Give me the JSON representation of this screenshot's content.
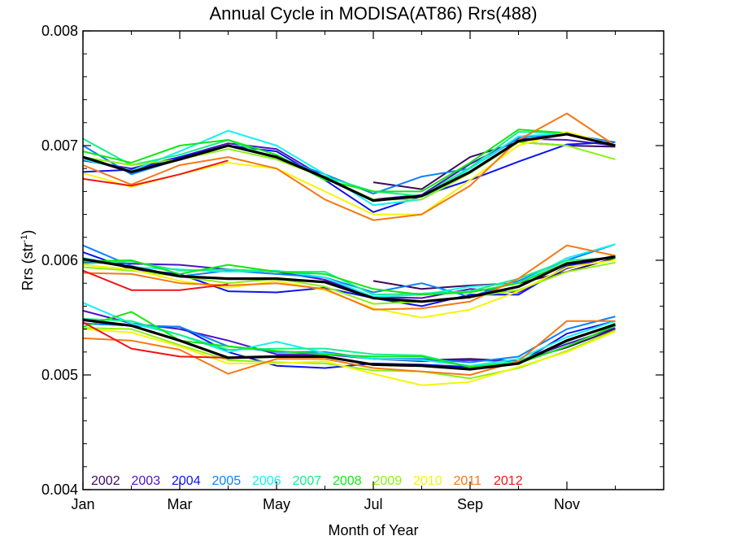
{
  "chart_data": {
    "type": "line",
    "title": "Annual Cycle in MODISA(AT86) Rrs(488)",
    "xlabel": "Month of Year",
    "ylabel_main": "Rrs (str",
    "ylabel_sup": "-1",
    "ylabel_close": ")",
    "xlim": [
      1,
      13
    ],
    "ylim": [
      0.004,
      0.008
    ],
    "xticks": [
      {
        "x": 1,
        "label": "Jan"
      },
      {
        "x": 3,
        "label": "Mar"
      },
      {
        "x": 5,
        "label": "May"
      },
      {
        "x": 7,
        "label": "Jul"
      },
      {
        "x": 9,
        "label": "Sep"
      },
      {
        "x": 11,
        "label": "Nov"
      }
    ],
    "yticks": [
      {
        "y": 0.004,
        "label": "0.004"
      },
      {
        "y": 0.005,
        "label": "0.005"
      },
      {
        "y": 0.006,
        "label": "0.006"
      },
      {
        "y": 0.007,
        "label": "0.007"
      },
      {
        "y": 0.008,
        "label": "0.008"
      }
    ],
    "legend_placement": "bottom-left",
    "groups": [
      "upper",
      "middle",
      "lower"
    ],
    "x": [
      1,
      2,
      3,
      4,
      5,
      6,
      7,
      8,
      9,
      10,
      11,
      12
    ],
    "series": [
      {
        "name": "2002",
        "color": "#3c0a5a",
        "upper": [
          null,
          null,
          null,
          null,
          null,
          null,
          0.00668,
          0.00662,
          0.0069,
          0.00703,
          0.007,
          0.00699
        ],
        "middle": [
          null,
          null,
          null,
          null,
          null,
          null,
          0.00582,
          0.00575,
          0.00578,
          0.0058,
          0.0059,
          0.00602
        ],
        "lower": [
          null,
          null,
          null,
          null,
          null,
          null,
          0.00514,
          0.00513,
          0.00514,
          0.00512,
          0.00524,
          0.0054
        ]
      },
      {
        "name": "2003",
        "color": "#4b14c8",
        "upper": [
          0.00687,
          0.0068,
          0.0069,
          0.00702,
          0.00697,
          0.00672,
          0.00653,
          0.00657,
          0.00684,
          0.00706,
          0.00705,
          0.007
        ],
        "middle": [
          0.00598,
          0.00597,
          0.00596,
          0.00592,
          0.0059,
          0.00583,
          0.00568,
          0.00567,
          0.00575,
          0.00572,
          0.00593,
          0.00604
        ],
        "lower": [
          0.00556,
          0.00545,
          0.0054,
          0.0053,
          0.00518,
          0.00518,
          0.00514,
          0.00512,
          0.00513,
          0.00512,
          0.00527,
          0.00541
        ]
      },
      {
        "name": "2004",
        "color": "#0a14f0",
        "upper": [
          0.00677,
          0.00679,
          0.0069,
          0.007,
          0.00695,
          0.0067,
          0.00642,
          0.00656,
          0.0067,
          0.00686,
          0.00701,
          0.00703
        ],
        "middle": [
          0.00607,
          0.00592,
          0.00588,
          0.00573,
          0.00572,
          0.00576,
          0.00567,
          0.0056,
          0.0057,
          0.0057,
          0.00595,
          0.00604
        ],
        "lower": [
          0.00545,
          0.00543,
          0.00542,
          0.0052,
          0.00508,
          0.00506,
          0.0051,
          0.00509,
          0.00507,
          0.0051,
          0.00536,
          0.00547
        ]
      },
      {
        "name": "2005",
        "color": "#0a82ff",
        "upper": [
          0.007,
          0.00675,
          0.00688,
          0.007,
          0.0069,
          0.00675,
          0.00658,
          0.00673,
          0.0068,
          0.00707,
          0.0071,
          0.00703
        ],
        "middle": [
          0.00613,
          0.00595,
          0.00586,
          0.00591,
          0.00588,
          0.00585,
          0.00572,
          0.0058,
          0.00568,
          0.00582,
          0.006,
          0.00614
        ],
        "lower": [
          0.00545,
          0.00543,
          0.00542,
          0.00525,
          0.0052,
          0.0052,
          0.00514,
          0.00514,
          0.00511,
          0.00516,
          0.0054,
          0.00551
        ]
      },
      {
        "name": "2006",
        "color": "#14f0f0",
        "upper": [
          0.00688,
          0.00678,
          0.00695,
          0.00713,
          0.007,
          0.00675,
          0.00648,
          0.00653,
          0.0068,
          0.00708,
          0.00711,
          0.007
        ],
        "middle": [
          0.00602,
          0.00594,
          0.00592,
          0.0059,
          0.00591,
          0.00585,
          0.00568,
          0.0057,
          0.00577,
          0.0058,
          0.00602,
          0.00614
        ],
        "lower": [
          0.00563,
          0.00545,
          0.00535,
          0.0052,
          0.00529,
          0.00519,
          0.00514,
          0.00513,
          0.00508,
          0.00514,
          0.00533,
          0.00547
        ]
      },
      {
        "name": "2007",
        "color": "#14f08c",
        "upper": [
          0.00706,
          0.00683,
          0.00692,
          0.00705,
          0.00688,
          0.00673,
          0.0066,
          0.00656,
          0.00681,
          0.00712,
          0.00711,
          0.007
        ],
        "middle": [
          0.00597,
          0.00599,
          0.00591,
          0.00592,
          0.0059,
          0.0059,
          0.0057,
          0.00571,
          0.00573,
          0.00584,
          0.006,
          0.00602
        ],
        "lower": [
          0.00549,
          0.00547,
          0.00535,
          0.00522,
          0.00523,
          0.00523,
          0.00518,
          0.00517,
          0.00507,
          0.00512,
          0.00529,
          0.00545
        ]
      },
      {
        "name": "2008",
        "color": "#14e614",
        "upper": [
          0.00695,
          0.00685,
          0.007,
          0.00705,
          0.00692,
          0.0067,
          0.0066,
          0.0066,
          0.00685,
          0.00714,
          0.00711,
          0.007
        ],
        "middle": [
          0.00599,
          0.006,
          0.00588,
          0.00596,
          0.0059,
          0.00588,
          0.00575,
          0.0057,
          0.00572,
          0.0058,
          0.00598,
          0.00602
        ],
        "lower": [
          0.00542,
          0.00555,
          0.0053,
          0.00525,
          0.00521,
          0.00518,
          0.00516,
          0.00516,
          0.00507,
          0.0051,
          0.00525,
          0.00543
        ]
      },
      {
        "name": "2009",
        "color": "#8cf014",
        "upper": [
          0.0069,
          0.00683,
          0.00688,
          0.00697,
          0.00688,
          0.00672,
          0.00653,
          0.00653,
          0.00676,
          0.00703,
          0.007,
          0.00688
        ],
        "middle": [
          0.00594,
          0.00591,
          0.00586,
          0.0058,
          0.00584,
          0.00577,
          0.00562,
          0.00564,
          0.00568,
          0.00574,
          0.0059,
          0.00598
        ],
        "lower": [
          0.00541,
          0.0054,
          0.00526,
          0.00513,
          0.00511,
          0.0051,
          0.00504,
          0.00503,
          0.00497,
          0.00506,
          0.00521,
          0.00539
        ]
      },
      {
        "name": "2010",
        "color": "#f5f50a",
        "upper": [
          0.00676,
          0.00664,
          0.00675,
          0.00685,
          0.0068,
          0.0066,
          0.0064,
          0.0064,
          0.0067,
          0.007,
          0.00712,
          0.007
        ],
        "middle": [
          0.00596,
          0.00592,
          0.00582,
          0.00576,
          0.00582,
          0.00574,
          0.00558,
          0.0055,
          0.00557,
          0.00573,
          0.00594,
          0.006
        ],
        "lower": [
          0.0054,
          0.00537,
          0.00525,
          0.0051,
          0.0051,
          0.00512,
          0.00501,
          0.00491,
          0.00494,
          0.00507,
          0.0052,
          0.00538
        ]
      },
      {
        "name": "2011",
        "color": "#f57814",
        "upper": [
          0.00683,
          0.00666,
          0.00683,
          0.0069,
          0.0068,
          0.00653,
          0.00635,
          0.0064,
          0.00665,
          0.00705,
          0.00728,
          0.007
        ],
        "middle": [
          0.00589,
          0.00588,
          0.0058,
          0.00578,
          0.0058,
          0.00575,
          0.00557,
          0.00558,
          0.00564,
          0.00584,
          0.00613,
          0.00604
        ],
        "lower": [
          0.00532,
          0.0053,
          0.00522,
          0.00501,
          0.00514,
          0.00514,
          0.00506,
          0.00503,
          0.005,
          0.00512,
          0.00547,
          0.00547
        ]
      },
      {
        "name": "2012",
        "color": "#f01414",
        "upper": [
          0.00671,
          0.00665,
          0.00675,
          0.00687,
          null,
          null,
          null,
          null,
          null,
          null,
          null,
          null
        ],
        "middle": [
          0.00591,
          0.00574,
          0.00574,
          0.00579,
          null,
          null,
          null,
          null,
          null,
          null,
          null,
          null
        ],
        "lower": [
          0.00546,
          0.00523,
          0.00516,
          0.00515,
          null,
          null,
          null,
          null,
          null,
          null,
          null,
          null
        ]
      },
      {
        "name": "",
        "color": "#000000",
        "is_mean": true,
        "upper": [
          0.0069,
          0.00677,
          0.00688,
          0.007,
          0.0069,
          0.00672,
          0.00652,
          0.00656,
          0.00677,
          0.00704,
          0.0071,
          0.007
        ],
        "middle": [
          0.00601,
          0.00594,
          0.00586,
          0.00584,
          0.00584,
          0.00581,
          0.00567,
          0.00564,
          0.00568,
          0.00577,
          0.00597,
          0.00603
        ],
        "lower": [
          0.00548,
          0.00543,
          0.0053,
          0.00515,
          0.00516,
          0.00516,
          0.00509,
          0.00508,
          0.00505,
          0.0051,
          0.0053,
          0.00544
        ]
      }
    ]
  }
}
